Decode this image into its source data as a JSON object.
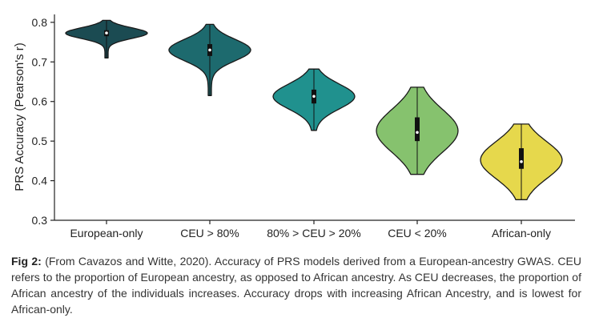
{
  "chart_data": {
    "type": "violin",
    "ylabel": "PRS Accuracy (Pearson's r)",
    "ylim": [
      0.3,
      0.82
    ],
    "yticks": [
      "0.3",
      "0.4",
      "0.5",
      "0.6",
      "0.7",
      "0.8"
    ],
    "categories": [
      "European-only",
      "CEU > 80%",
      "80% > CEU > 20%",
      "CEU < 20%",
      "African-only"
    ],
    "colors": [
      "#1b4b52",
      "#1d6a6e",
      "#20918e",
      "#86c26e",
      "#e6d84c"
    ],
    "distributions": [
      {
        "min": 0.71,
        "q1": 0.765,
        "median": 0.773,
        "q3": 0.78,
        "max": 0.805
      },
      {
        "min": 0.615,
        "q1": 0.715,
        "median": 0.73,
        "q3": 0.745,
        "max": 0.795
      },
      {
        "min": 0.527,
        "q1": 0.595,
        "median": 0.613,
        "q3": 0.63,
        "max": 0.682
      },
      {
        "min": 0.416,
        "q1": 0.5,
        "median": 0.522,
        "q3": 0.56,
        "max": 0.636
      },
      {
        "min": 0.352,
        "q1": 0.43,
        "median": 0.448,
        "q3": 0.482,
        "max": 0.543
      }
    ]
  },
  "caption": {
    "label": "Fig 2:",
    "text": "(From Cavazos and Witte, 2020). Accuracy of PRS models derived from a European-ancestry GWAS. CEU refers to the proportion of European ancestry, as opposed to African ancestry. As CEU decreases, the proportion of African ancestry of the individuals increases.  Accuracy drops with increasing African Ancestry, and is lowest for African-only."
  }
}
